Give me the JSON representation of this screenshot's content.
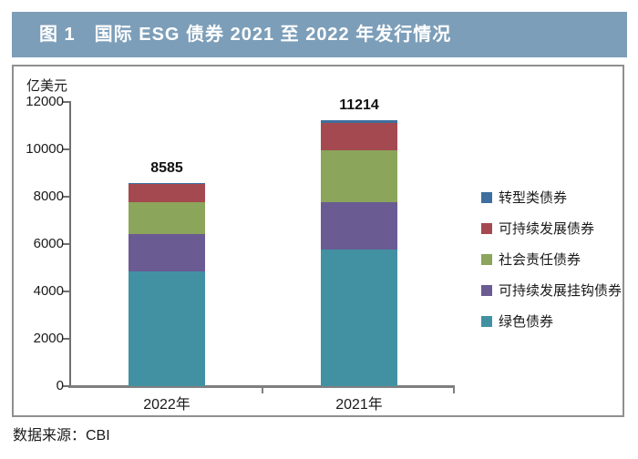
{
  "header": {
    "title": "图 1　国际 ESG 债券 2021 至 2022 年发行情况"
  },
  "source": {
    "text": "数据来源：CBI"
  },
  "chart_data": {
    "type": "bar",
    "stacked": true,
    "title": "图 1 国际 ESG 债券 2021 至 2022 年发行情况",
    "ylabel": "亿美元",
    "xlabel": "",
    "categories": [
      "2022年",
      "2021年"
    ],
    "series": [
      {
        "name": "绿色债券",
        "color": "#4291A3",
        "values": [
          4840,
          5780
        ]
      },
      {
        "name": "可持续发展挂钩债券",
        "color": "#6A5B93",
        "values": [
          1590,
          2000
        ]
      },
      {
        "name": "社会责任债券",
        "color": "#8BA55B",
        "values": [
          1350,
          2190
        ]
      },
      {
        "name": "可持续发展债券",
        "color": "#A4494F",
        "values": [
          770,
          1130
        ]
      },
      {
        "name": "转型类债券",
        "color": "#3E6F9F",
        "values": [
          35,
          114
        ]
      }
    ],
    "totals": [
      8585,
      11214
    ],
    "ylim": [
      0,
      12000
    ],
    "ytick_step": 2000,
    "yticks": [
      0,
      2000,
      4000,
      6000,
      8000,
      10000,
      12000
    ],
    "grid": false,
    "legend_position": "right",
    "legend": [
      "转型类债券",
      "可持续发展债券",
      "社会责任债券",
      "可持续发展挂钩债券",
      "绿色债券"
    ],
    "colors": {
      "header_bg": "#7C9EB9",
      "axis": "#6F6F6F",
      "text": "#1a1a1a",
      "box_border": "#8F8F8F"
    }
  }
}
